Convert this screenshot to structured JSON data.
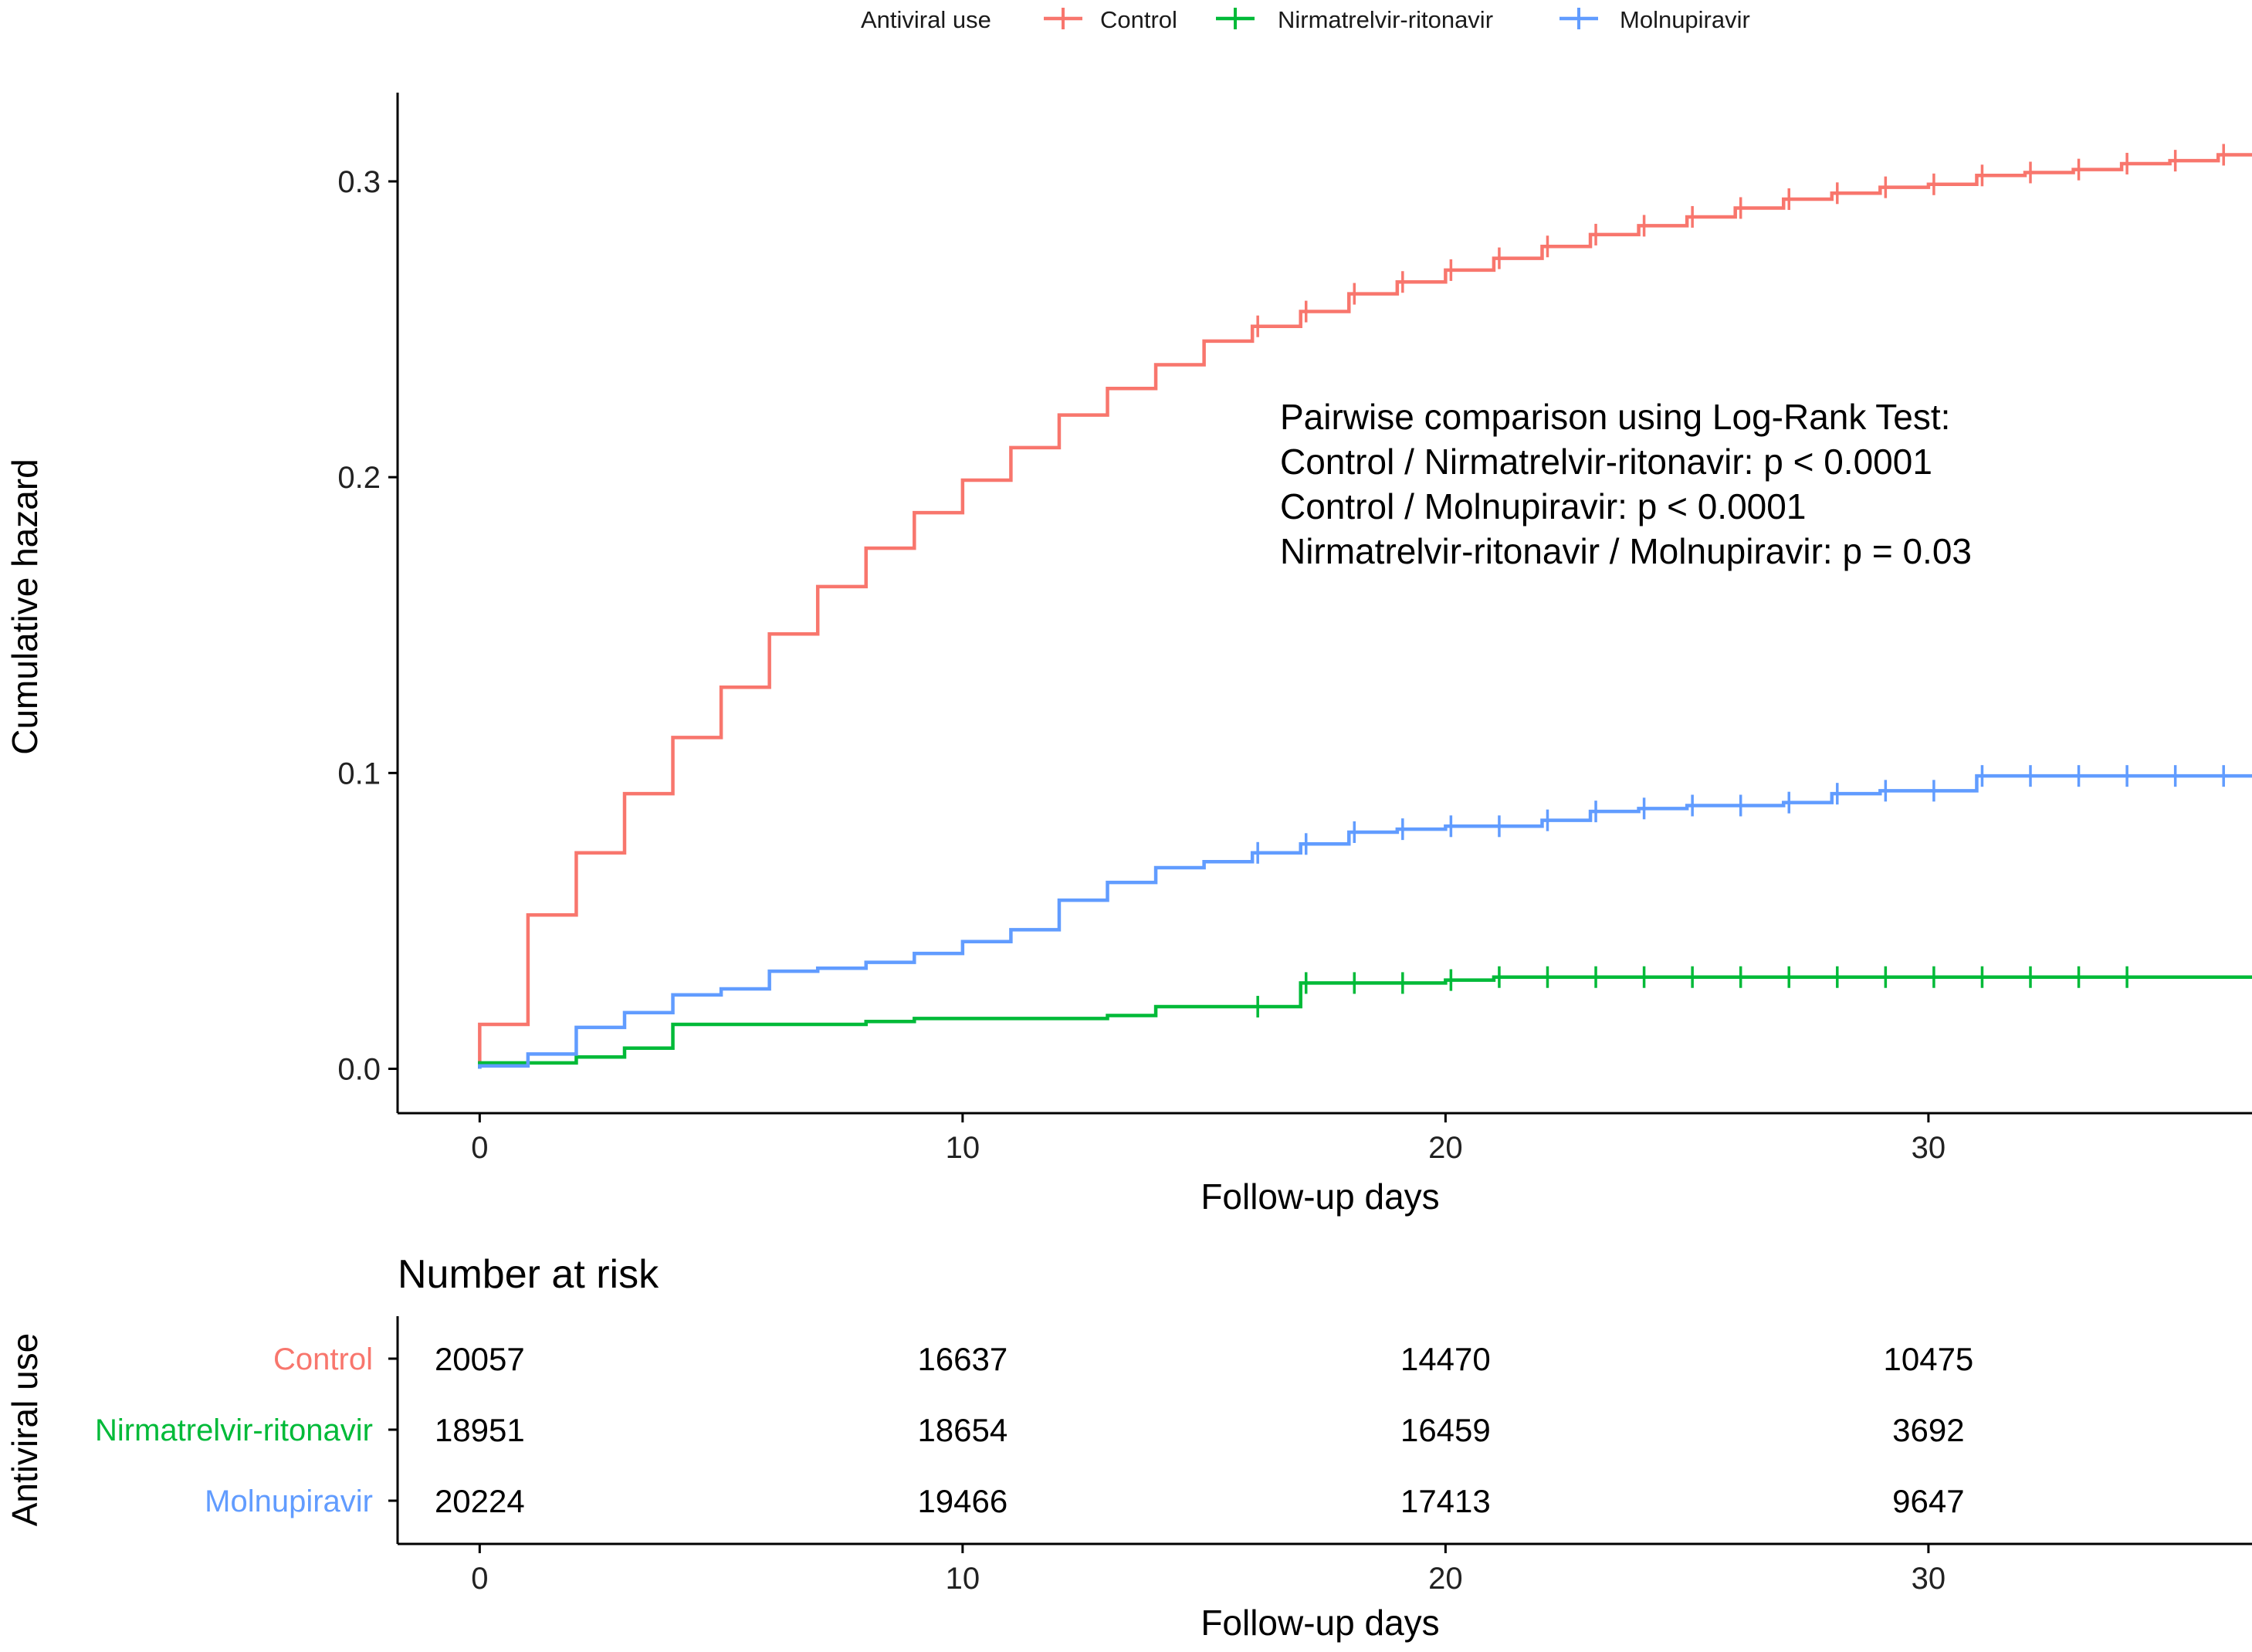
{
  "chart_data": {
    "type": "line",
    "xlabel": "Follow-up days",
    "ylabel": "Cumulative hazard",
    "xlim": [
      -1.7,
      36.7
    ],
    "ylim": [
      -0.015,
      0.33
    ],
    "x_ticks": [
      0,
      10,
      20,
      30
    ],
    "y_ticks": [
      0.0,
      0.1,
      0.2,
      0.3
    ],
    "x_tick_labels": [
      "0",
      "10",
      "20",
      "30"
    ],
    "y_tick_labels": [
      "0.0",
      "0.1",
      "0.2",
      "0.3"
    ],
    "grid": false,
    "legend": {
      "title": "Antiviral use",
      "placement": "top",
      "entries": [
        "Control",
        "Nirmatrelvir-ritonavir",
        "Molnupiravir"
      ]
    },
    "series": [
      {
        "name": "Control",
        "color": "#F8766D",
        "steps": [
          [
            0,
            0.015
          ],
          [
            1,
            0.052
          ],
          [
            2,
            0.073
          ],
          [
            3,
            0.093
          ],
          [
            4,
            0.112
          ],
          [
            5,
            0.129
          ],
          [
            6,
            0.147
          ],
          [
            7,
            0.163
          ],
          [
            8,
            0.176
          ],
          [
            9,
            0.188
          ],
          [
            10,
            0.199
          ],
          [
            11,
            0.21
          ],
          [
            12,
            0.221
          ],
          [
            13,
            0.23
          ],
          [
            14,
            0.238
          ],
          [
            15,
            0.246
          ],
          [
            16,
            0.251
          ],
          [
            17,
            0.256
          ],
          [
            18,
            0.262
          ],
          [
            19,
            0.266
          ],
          [
            20,
            0.27
          ],
          [
            21,
            0.274
          ],
          [
            22,
            0.278
          ],
          [
            23,
            0.282
          ],
          [
            24,
            0.285
          ],
          [
            25,
            0.288
          ],
          [
            26,
            0.291
          ],
          [
            27,
            0.294
          ],
          [
            28,
            0.296
          ],
          [
            29,
            0.298
          ],
          [
            30,
            0.299
          ],
          [
            31,
            0.302
          ],
          [
            32,
            0.303
          ],
          [
            33,
            0.304
          ],
          [
            34,
            0.306
          ],
          [
            35,
            0.307
          ],
          [
            36,
            0.309
          ],
          [
            36.7,
            0.309
          ]
        ],
        "censor_x": [
          16,
          17,
          18,
          19,
          20,
          21,
          22,
          23,
          24,
          25,
          26,
          27,
          28,
          29,
          30,
          31,
          32,
          33,
          34,
          35,
          36
        ]
      },
      {
        "name": "Nirmatrelvir-ritonavir",
        "color": "#00BA38",
        "steps": [
          [
            0,
            0.002
          ],
          [
            2,
            0.004
          ],
          [
            3,
            0.007
          ],
          [
            4,
            0.015
          ],
          [
            8,
            0.016
          ],
          [
            9,
            0.017
          ],
          [
            13,
            0.018
          ],
          [
            14,
            0.021
          ],
          [
            17,
            0.029
          ],
          [
            20,
            0.03
          ],
          [
            21,
            0.031
          ],
          [
            36.7,
            0.031
          ]
        ],
        "censor_x": [
          16,
          17,
          18,
          19,
          20,
          21,
          22,
          23,
          24,
          25,
          26,
          27,
          28,
          29,
          30,
          31,
          32,
          33,
          34
        ]
      },
      {
        "name": "Molnupiravir",
        "color": "#619CFF",
        "steps": [
          [
            0,
            0.001
          ],
          [
            1,
            0.005
          ],
          [
            2,
            0.014
          ],
          [
            3,
            0.019
          ],
          [
            4,
            0.025
          ],
          [
            5,
            0.027
          ],
          [
            6,
            0.033
          ],
          [
            7,
            0.034
          ],
          [
            8,
            0.036
          ],
          [
            9,
            0.039
          ],
          [
            10,
            0.043
          ],
          [
            11,
            0.047
          ],
          [
            12,
            0.057
          ],
          [
            13,
            0.063
          ],
          [
            14,
            0.068
          ],
          [
            15,
            0.07
          ],
          [
            16,
            0.073
          ],
          [
            17,
            0.076
          ],
          [
            18,
            0.08
          ],
          [
            19,
            0.081
          ],
          [
            20,
            0.082
          ],
          [
            21,
            0.082
          ],
          [
            22,
            0.084
          ],
          [
            23,
            0.087
          ],
          [
            24,
            0.088
          ],
          [
            25,
            0.089
          ],
          [
            26,
            0.089
          ],
          [
            27,
            0.09
          ],
          [
            28,
            0.093
          ],
          [
            29,
            0.094
          ],
          [
            30,
            0.094
          ],
          [
            31,
            0.099
          ],
          [
            36.7,
            0.099
          ]
        ],
        "censor_x": [
          16,
          17,
          18,
          19,
          20,
          21,
          22,
          23,
          24,
          25,
          26,
          27,
          28,
          29,
          30,
          31,
          32,
          33,
          34,
          35,
          36
        ]
      }
    ],
    "annotations": [
      "Pairwise comparison using Log-Rank Test:",
      "Control / Nirmatrelvir-ritonavir:  p < 0.0001",
      "Control / Molnupiravir:  p < 0.0001",
      "Nirmatrelvir-ritonavir  / Molnupiravir:  p = 0.03"
    ],
    "risk_table": {
      "title": "Number at risk",
      "ylabel": "Antiviral use",
      "xlabel": "Follow-up days",
      "time_points": [
        0,
        10,
        20,
        30
      ],
      "rows": [
        {
          "label": "Control",
          "color": "#F8766D",
          "values": [
            "20057",
            "16637",
            "14470",
            "10475"
          ]
        },
        {
          "label": "Nirmatrelvir-ritonavir",
          "color": "#00BA38",
          "values": [
            "18951",
            "18654",
            "16459",
            "3692"
          ]
        },
        {
          "label": "Molnupiravir",
          "color": "#619CFF",
          "values": [
            "20224",
            "19466",
            "17413",
            "9647"
          ]
        }
      ]
    }
  }
}
